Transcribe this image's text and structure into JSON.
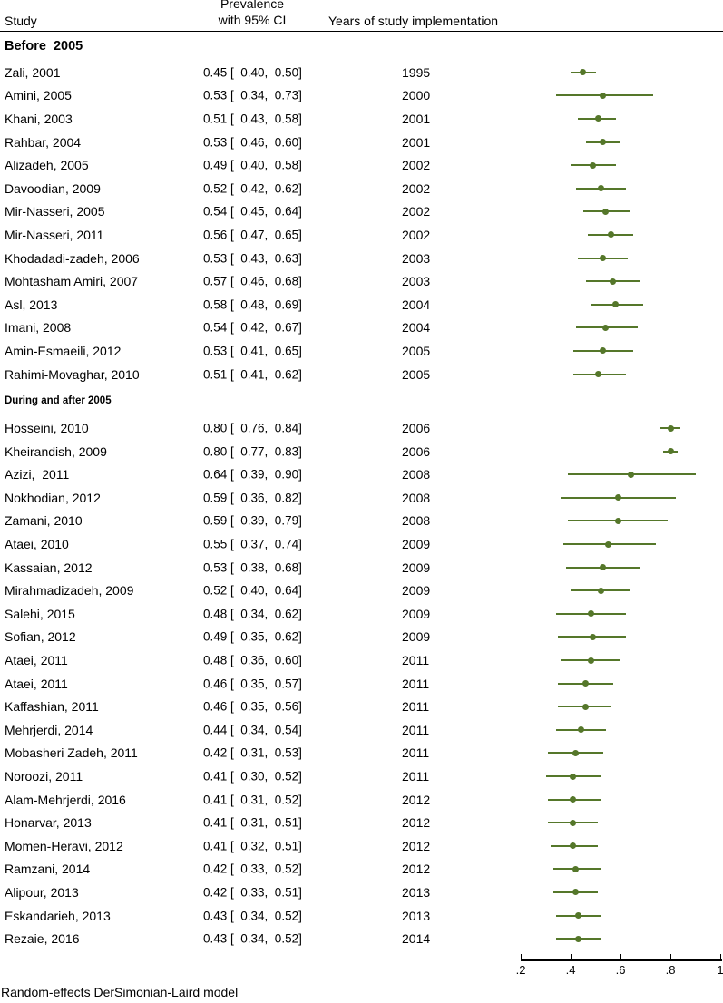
{
  "header": {
    "study_col": "Study",
    "prevalence_line1": "Prevalence",
    "prevalence_line2": "with 95% CI",
    "years_col": "Years of study implementation"
  },
  "footer": {
    "note": "Random-effects DerSimonian-Laird model"
  },
  "colors": {
    "marker": "#55772a",
    "axis": "#000000",
    "text": "#000000"
  },
  "chart_data": {
    "type": "forest",
    "title": "",
    "xlabel": "",
    "xlim": [
      0.2,
      1.0
    ],
    "x_ticks": [
      0.2,
      0.4,
      0.6,
      0.8,
      1.0
    ],
    "x_tick_labels": [
      ".2",
      ".4",
      ".6",
      ".8",
      "1"
    ],
    "legend": "none",
    "grid": false,
    "groups": [
      {
        "label": "Before  2005",
        "rows": [
          {
            "study": "Zali, 2001",
            "ci_text": "0.45 [  0.40,  0.50]",
            "year": "1995",
            "est": 0.45,
            "lo": 0.4,
            "hi": 0.5
          },
          {
            "study": "Amini, 2005",
            "ci_text": "0.53 [  0.34,  0.73]",
            "year": "2000",
            "est": 0.53,
            "lo": 0.34,
            "hi": 0.73
          },
          {
            "study": "Khani, 2003",
            "ci_text": "0.51 [  0.43,  0.58]",
            "year": "2001",
            "est": 0.51,
            "lo": 0.43,
            "hi": 0.58
          },
          {
            "study": "Rahbar, 2004",
            "ci_text": "0.53 [  0.46,  0.60]",
            "year": "2001",
            "est": 0.53,
            "lo": 0.46,
            "hi": 0.6
          },
          {
            "study": "Alizadeh, 2005",
            "ci_text": "0.49 [  0.40,  0.58]",
            "year": "2002",
            "est": 0.49,
            "lo": 0.4,
            "hi": 0.58
          },
          {
            "study": "Davoodian, 2009",
            "ci_text": "0.52 [  0.42,  0.62]",
            "year": "2002",
            "est": 0.52,
            "lo": 0.42,
            "hi": 0.62
          },
          {
            "study": "Mir-Nasseri, 2005",
            "ci_text": "0.54 [  0.45,  0.64]",
            "year": "2002",
            "est": 0.54,
            "lo": 0.45,
            "hi": 0.64
          },
          {
            "study": "Mir-Nasseri, 2011",
            "ci_text": "0.56 [  0.47,  0.65]",
            "year": "2002",
            "est": 0.56,
            "lo": 0.47,
            "hi": 0.65
          },
          {
            "study": "Khodadadi-zadeh, 2006",
            "ci_text": "0.53 [  0.43,  0.63]",
            "year": "2003",
            "est": 0.53,
            "lo": 0.43,
            "hi": 0.63
          },
          {
            "study": "Mohtasham Amiri, 2007",
            "ci_text": "0.57 [  0.46,  0.68]",
            "year": "2003",
            "est": 0.57,
            "lo": 0.46,
            "hi": 0.68
          },
          {
            "study": "Asl, 2013",
            "ci_text": "0.58 [  0.48,  0.69]",
            "year": "2004",
            "est": 0.58,
            "lo": 0.48,
            "hi": 0.69
          },
          {
            "study": "Imani, 2008",
            "ci_text": "0.54 [  0.42,  0.67]",
            "year": "2004",
            "est": 0.54,
            "lo": 0.42,
            "hi": 0.67
          },
          {
            "study": "Amin-Esmaeili, 2012",
            "ci_text": "0.53 [  0.41,  0.65]",
            "year": "2005",
            "est": 0.53,
            "lo": 0.41,
            "hi": 0.65
          },
          {
            "study": "Rahimi-Movaghar, 2010",
            "ci_text": "0.51 [  0.41,  0.62]",
            "year": "2005",
            "est": 0.51,
            "lo": 0.41,
            "hi": 0.62
          }
        ]
      },
      {
        "label": "During and after 2005",
        "rows": [
          {
            "study": "Hosseini, 2010",
            "ci_text": "0.80 [  0.76,  0.84]",
            "year": "2006",
            "est": 0.8,
            "lo": 0.76,
            "hi": 0.84
          },
          {
            "study": "Kheirandish, 2009",
            "ci_text": "0.80 [  0.77,  0.83]",
            "year": "2006",
            "est": 0.8,
            "lo": 0.77,
            "hi": 0.83
          },
          {
            "study": "Azizi,  2011",
            "ci_text": "0.64 [  0.39,  0.90]",
            "year": "2008",
            "est": 0.64,
            "lo": 0.39,
            "hi": 0.9
          },
          {
            "study": "Nokhodian, 2012",
            "ci_text": "0.59 [  0.36,  0.82]",
            "year": "2008",
            "est": 0.59,
            "lo": 0.36,
            "hi": 0.82
          },
          {
            "study": "Zamani, 2010",
            "ci_text": "0.59 [  0.39,  0.79]",
            "year": "2008",
            "est": 0.59,
            "lo": 0.39,
            "hi": 0.79
          },
          {
            "study": "Ataei, 2010",
            "ci_text": "0.55 [  0.37,  0.74]",
            "year": "2009",
            "est": 0.55,
            "lo": 0.37,
            "hi": 0.74
          },
          {
            "study": "Kassaian, 2012",
            "ci_text": "0.53 [  0.38,  0.68]",
            "year": "2009",
            "est": 0.53,
            "lo": 0.38,
            "hi": 0.68
          },
          {
            "study": "Mirahmadizadeh, 2009",
            "ci_text": "0.52 [  0.40,  0.64]",
            "year": "2009",
            "est": 0.52,
            "lo": 0.4,
            "hi": 0.64
          },
          {
            "study": "Salehi, 2015",
            "ci_text": "0.48 [  0.34,  0.62]",
            "year": "2009",
            "est": 0.48,
            "lo": 0.34,
            "hi": 0.62
          },
          {
            "study": "Sofian, 2012",
            "ci_text": "0.49 [  0.35,  0.62]",
            "year": "2009",
            "est": 0.49,
            "lo": 0.35,
            "hi": 0.62
          },
          {
            "study": "Ataei, 2011",
            "ci_text": "0.48 [  0.36,  0.60]",
            "year": "2011",
            "est": 0.48,
            "lo": 0.36,
            "hi": 0.6
          },
          {
            "study": "Ataei, 2011",
            "ci_text": "0.46 [  0.35,  0.57]",
            "year": "2011",
            "est": 0.46,
            "lo": 0.35,
            "hi": 0.57
          },
          {
            "study": "Kaffashian, 2011",
            "ci_text": "0.46 [  0.35,  0.56]",
            "year": "2011",
            "est": 0.46,
            "lo": 0.35,
            "hi": 0.56
          },
          {
            "study": "Mehrjerdi, 2014",
            "ci_text": "0.44 [  0.34,  0.54]",
            "year": "2011",
            "est": 0.44,
            "lo": 0.34,
            "hi": 0.54
          },
          {
            "study": "Mobasheri Zadeh, 2011",
            "ci_text": "0.42 [  0.31,  0.53]",
            "year": "2011",
            "est": 0.42,
            "lo": 0.31,
            "hi": 0.53
          },
          {
            "study": "Noroozi, 2011",
            "ci_text": "0.41 [  0.30,  0.52]",
            "year": "2011",
            "est": 0.41,
            "lo": 0.3,
            "hi": 0.52
          },
          {
            "study": "Alam-Mehrjerdi, 2016",
            "ci_text": "0.41 [  0.31,  0.52]",
            "year": "2012",
            "est": 0.41,
            "lo": 0.31,
            "hi": 0.52
          },
          {
            "study": "Honarvar, 2013",
            "ci_text": "0.41 [  0.31,  0.51]",
            "year": "2012",
            "est": 0.41,
            "lo": 0.31,
            "hi": 0.51
          },
          {
            "study": "Momen-Heravi, 2012",
            "ci_text": "0.41 [  0.32,  0.51]",
            "year": "2012",
            "est": 0.41,
            "lo": 0.32,
            "hi": 0.51
          },
          {
            "study": "Ramzani, 2014",
            "ci_text": "0.42 [  0.33,  0.52]",
            "year": "2012",
            "est": 0.42,
            "lo": 0.33,
            "hi": 0.52
          },
          {
            "study": "Alipour, 2013",
            "ci_text": "0.42 [  0.33,  0.51]",
            "year": "2013",
            "est": 0.42,
            "lo": 0.33,
            "hi": 0.51
          },
          {
            "study": "Eskandarieh, 2013",
            "ci_text": "0.43 [  0.34,  0.52]",
            "year": "2013",
            "est": 0.43,
            "lo": 0.34,
            "hi": 0.52
          },
          {
            "study": "Rezaie, 2016",
            "ci_text": "0.43 [  0.34,  0.52]",
            "year": "2014",
            "est": 0.43,
            "lo": 0.34,
            "hi": 0.52
          }
        ]
      }
    ]
  }
}
